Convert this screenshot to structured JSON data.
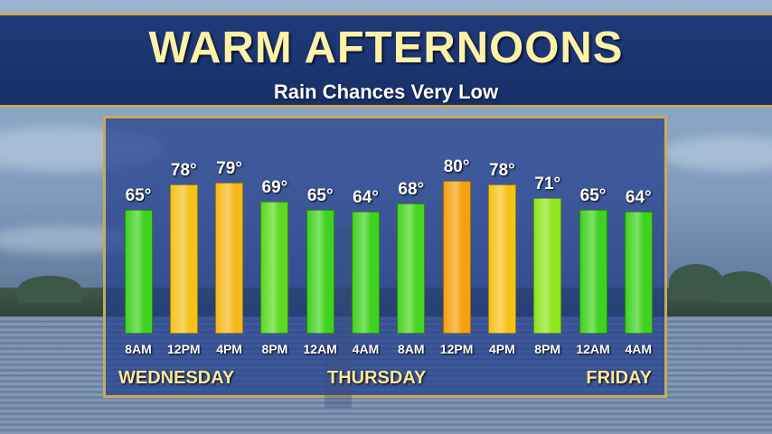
{
  "header": {
    "title": "WARM AFTERNOONS",
    "subtitle": "Rain Chances Very Low"
  },
  "colors": {
    "banner": "#1f3a7a",
    "gold_border": "#c9a95a",
    "title_text": "#fff2a8",
    "day_text": "#ffe89a"
  },
  "chart_data": {
    "type": "bar",
    "title": "WARM AFTERNOONS",
    "subtitle": "Rain Chances Very Low",
    "categories": [
      "8AM",
      "12PM",
      "4PM",
      "8PM",
      "12AM",
      "4AM",
      "8AM",
      "12PM",
      "4PM",
      "8PM",
      "12AM",
      "4AM"
    ],
    "values": [
      65,
      78,
      79,
      69,
      65,
      64,
      68,
      80,
      78,
      71,
      65,
      64
    ],
    "value_labels": [
      "65°",
      "78°",
      "79°",
      "69°",
      "65°",
      "64°",
      "68°",
      "80°",
      "78°",
      "71°",
      "65°",
      "64°"
    ],
    "bar_colors": [
      "#3fd21e",
      "#f5c21a",
      "#f5b81a",
      "#5bd81f",
      "#3fd21e",
      "#3fd21e",
      "#48d41f",
      "#f5a00d",
      "#f5c21a",
      "#8ee61c",
      "#3fd21e",
      "#3fd21e"
    ],
    "day_labels": [
      {
        "label": "WEDNESDAY",
        "align": "left"
      },
      {
        "label": "THURSDAY",
        "align": "center"
      },
      {
        "label": "FRIDAY",
        "align": "right"
      }
    ],
    "unit": "°",
    "grid": false,
    "legend": "none"
  }
}
